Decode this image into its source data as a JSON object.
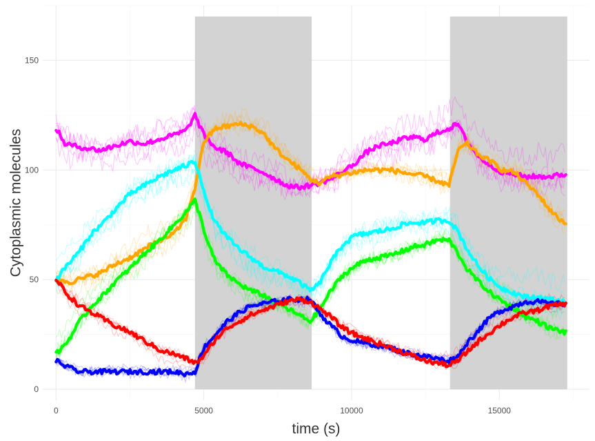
{
  "chart_data": {
    "type": "line",
    "title": "",
    "xlabel": "time (s)",
    "ylabel": "Cytoplasmic molecules",
    "xlim": [
      -450,
      18050
    ],
    "ylim": [
      -5,
      175
    ],
    "x_ticks": [
      0,
      5000,
      10000,
      15000
    ],
    "x_tick_labels": [
      "0",
      "5000",
      "10000",
      "15000"
    ],
    "y_ticks": [
      0,
      50,
      100,
      150
    ],
    "y_tick_labels": [
      "0",
      "50",
      "100",
      "150"
    ],
    "grid": true,
    "legend": "none",
    "shaded_intervals": [
      {
        "x_start": 4700,
        "x_end": 8650,
        "y_top": 170
      },
      {
        "x_start": 13330,
        "x_end": 17300,
        "y_top": 170
      }
    ],
    "series": [
      {
        "color": "#ff00ff",
        "points": [
          [
            0,
            119
          ],
          [
            300,
            112
          ],
          [
            600,
            111
          ],
          [
            1000,
            110
          ],
          [
            1500,
            109
          ],
          [
            2000,
            111
          ],
          [
            2500,
            113
          ],
          [
            3000,
            112
          ],
          [
            3500,
            114
          ],
          [
            4000,
            116
          ],
          [
            4400,
            118
          ],
          [
            4700,
            125
          ],
          [
            5000,
            116
          ],
          [
            5400,
            110
          ],
          [
            5800,
            108
          ],
          [
            6200,
            103
          ],
          [
            6600,
            101
          ],
          [
            7000,
            99
          ],
          [
            7400,
            96
          ],
          [
            7800,
            93
          ],
          [
            8200,
            92
          ],
          [
            8600,
            93
          ],
          [
            8900,
            94
          ],
          [
            9300,
            96
          ],
          [
            9700,
            99
          ],
          [
            10100,
            103
          ],
          [
            10500,
            108
          ],
          [
            10900,
            111
          ],
          [
            11300,
            112
          ],
          [
            11700,
            114
          ],
          [
            12100,
            115
          ],
          [
            12500,
            114
          ],
          [
            12900,
            117
          ],
          [
            13300,
            119
          ],
          [
            13600,
            121
          ],
          [
            13900,
            113
          ],
          [
            14300,
            106
          ],
          [
            14700,
            102
          ],
          [
            15100,
            99
          ],
          [
            15500,
            98
          ],
          [
            15900,
            97
          ],
          [
            16300,
            97
          ],
          [
            16700,
            97
          ],
          [
            17200,
            98
          ]
        ]
      },
      {
        "color": "#ffa500",
        "points": [
          [
            0,
            50
          ],
          [
            500,
            49
          ],
          [
            1000,
            51
          ],
          [
            1500,
            53
          ],
          [
            2000,
            57
          ],
          [
            2500,
            60
          ],
          [
            3000,
            64
          ],
          [
            3500,
            68
          ],
          [
            4000,
            71
          ],
          [
            4400,
            78
          ],
          [
            4700,
            92
          ],
          [
            5000,
            113
          ],
          [
            5400,
            119
          ],
          [
            5800,
            120
          ],
          [
            6200,
            121
          ],
          [
            6600,
            120
          ],
          [
            7000,
            117
          ],
          [
            7400,
            110
          ],
          [
            7800,
            105
          ],
          [
            8200,
            101
          ],
          [
            8600,
            96
          ],
          [
            8900,
            94
          ],
          [
            9300,
            97
          ],
          [
            9700,
            98
          ],
          [
            10100,
            99
          ],
          [
            10500,
            100
          ],
          [
            10900,
            100
          ],
          [
            11300,
            100
          ],
          [
            11700,
            99
          ],
          [
            12100,
            98
          ],
          [
            12500,
            97
          ],
          [
            12900,
            95
          ],
          [
            13300,
            93
          ],
          [
            13600,
            109
          ],
          [
            13900,
            112
          ],
          [
            14300,
            107
          ],
          [
            14700,
            104
          ],
          [
            15100,
            100
          ],
          [
            15500,
            99
          ],
          [
            15900,
            94
          ],
          [
            16300,
            89
          ],
          [
            16700,
            82
          ],
          [
            17000,
            78
          ],
          [
            17200,
            76
          ]
        ]
      },
      {
        "color": "#00ffff",
        "points": [
          [
            0,
            50
          ],
          [
            400,
            57
          ],
          [
            800,
            63
          ],
          [
            1200,
            71
          ],
          [
            1600,
            76
          ],
          [
            2000,
            82
          ],
          [
            2500,
            89
          ],
          [
            3000,
            93
          ],
          [
            3500,
            97
          ],
          [
            4000,
            100
          ],
          [
            4400,
            102
          ],
          [
            4700,
            104
          ],
          [
            4900,
            96
          ],
          [
            5100,
            85
          ],
          [
            5400,
            76
          ],
          [
            5800,
            69
          ],
          [
            6200,
            64
          ],
          [
            6600,
            60
          ],
          [
            7000,
            56
          ],
          [
            7400,
            54
          ],
          [
            7800,
            52
          ],
          [
            8200,
            49
          ],
          [
            8600,
            45
          ],
          [
            8900,
            48
          ],
          [
            9300,
            58
          ],
          [
            9700,
            66
          ],
          [
            10100,
            70
          ],
          [
            10500,
            71
          ],
          [
            10900,
            72
          ],
          [
            11300,
            73
          ],
          [
            11700,
            75
          ],
          [
            12100,
            76
          ],
          [
            12500,
            76
          ],
          [
            12900,
            77
          ],
          [
            13300,
            77
          ],
          [
            13600,
            72
          ],
          [
            13900,
            64
          ],
          [
            14300,
            56
          ],
          [
            14700,
            50
          ],
          [
            15100,
            46
          ],
          [
            15500,
            44
          ],
          [
            15900,
            42
          ],
          [
            16300,
            42
          ],
          [
            16700,
            41
          ],
          [
            17200,
            40
          ]
        ]
      },
      {
        "color": "#00ff00",
        "points": [
          [
            0,
            16
          ],
          [
            400,
            22
          ],
          [
            800,
            31
          ],
          [
            1200,
            38
          ],
          [
            1600,
            43
          ],
          [
            2000,
            49
          ],
          [
            2500,
            55
          ],
          [
            3000,
            62
          ],
          [
            3500,
            68
          ],
          [
            4000,
            75
          ],
          [
            4400,
            81
          ],
          [
            4700,
            86
          ],
          [
            4900,
            78
          ],
          [
            5100,
            68
          ],
          [
            5400,
            58
          ],
          [
            5800,
            52
          ],
          [
            6200,
            48
          ],
          [
            6600,
            45
          ],
          [
            7000,
            43
          ],
          [
            7400,
            40
          ],
          [
            7800,
            37
          ],
          [
            8200,
            34
          ],
          [
            8600,
            31
          ],
          [
            8900,
            36
          ],
          [
            9300,
            45
          ],
          [
            9700,
            52
          ],
          [
            10100,
            56
          ],
          [
            10500,
            59
          ],
          [
            10900,
            60
          ],
          [
            11300,
            61
          ],
          [
            11700,
            63
          ],
          [
            12100,
            65
          ],
          [
            12500,
            66
          ],
          [
            12900,
            68
          ],
          [
            13300,
            68
          ],
          [
            13600,
            62
          ],
          [
            13900,
            55
          ],
          [
            14300,
            49
          ],
          [
            14700,
            44
          ],
          [
            15100,
            40
          ],
          [
            15500,
            37
          ],
          [
            15900,
            33
          ],
          [
            16300,
            31
          ],
          [
            16700,
            28
          ],
          [
            17200,
            26
          ]
        ]
      },
      {
        "color": "#0000ff",
        "points": [
          [
            0,
            13
          ],
          [
            400,
            10
          ],
          [
            800,
            8
          ],
          [
            1200,
            8
          ],
          [
            1600,
            8
          ],
          [
            2000,
            8
          ],
          [
            2500,
            8
          ],
          [
            3000,
            8
          ],
          [
            3500,
            8
          ],
          [
            4000,
            8
          ],
          [
            4400,
            7
          ],
          [
            4700,
            8
          ],
          [
            5000,
            19
          ],
          [
            5400,
            25
          ],
          [
            5800,
            31
          ],
          [
            6200,
            35
          ],
          [
            6600,
            38
          ],
          [
            7000,
            39
          ],
          [
            7400,
            40
          ],
          [
            7800,
            41
          ],
          [
            8200,
            41
          ],
          [
            8600,
            41
          ],
          [
            8900,
            35
          ],
          [
            9300,
            29
          ],
          [
            9700,
            24
          ],
          [
            10100,
            22
          ],
          [
            10500,
            21
          ],
          [
            10900,
            20
          ],
          [
            11300,
            19
          ],
          [
            11700,
            17
          ],
          [
            12100,
            16
          ],
          [
            12500,
            15
          ],
          [
            12900,
            14
          ],
          [
            13300,
            13
          ],
          [
            13600,
            15
          ],
          [
            13900,
            21
          ],
          [
            14300,
            27
          ],
          [
            14700,
            33
          ],
          [
            15100,
            36
          ],
          [
            15500,
            38
          ],
          [
            15900,
            40
          ],
          [
            16300,
            40
          ],
          [
            16700,
            39
          ],
          [
            17200,
            39
          ]
        ]
      },
      {
        "color": "#ff0000",
        "points": [
          [
            0,
            50
          ],
          [
            400,
            43
          ],
          [
            800,
            38
          ],
          [
            1200,
            35
          ],
          [
            1600,
            32
          ],
          [
            2000,
            29
          ],
          [
            2500,
            26
          ],
          [
            3000,
            22
          ],
          [
            3500,
            18
          ],
          [
            4000,
            16
          ],
          [
            4400,
            14
          ],
          [
            4700,
            12
          ],
          [
            5000,
            15
          ],
          [
            5400,
            23
          ],
          [
            5800,
            28
          ],
          [
            6200,
            31
          ],
          [
            6600,
            34
          ],
          [
            7000,
            36
          ],
          [
            7400,
            38
          ],
          [
            7800,
            40
          ],
          [
            8200,
            41
          ],
          [
            8600,
            40
          ],
          [
            8900,
            37
          ],
          [
            9300,
            33
          ],
          [
            9700,
            28
          ],
          [
            10100,
            25
          ],
          [
            10500,
            23
          ],
          [
            10900,
            21
          ],
          [
            11300,
            19
          ],
          [
            11700,
            17
          ],
          [
            12100,
            15
          ],
          [
            12500,
            13
          ],
          [
            12900,
            12
          ],
          [
            13300,
            11
          ],
          [
            13600,
            13
          ],
          [
            13900,
            17
          ],
          [
            14300,
            22
          ],
          [
            14700,
            26
          ],
          [
            15100,
            30
          ],
          [
            15500,
            33
          ],
          [
            15900,
            35
          ],
          [
            16300,
            36
          ],
          [
            16700,
            38
          ],
          [
            17200,
            39
          ]
        ]
      }
    ]
  }
}
